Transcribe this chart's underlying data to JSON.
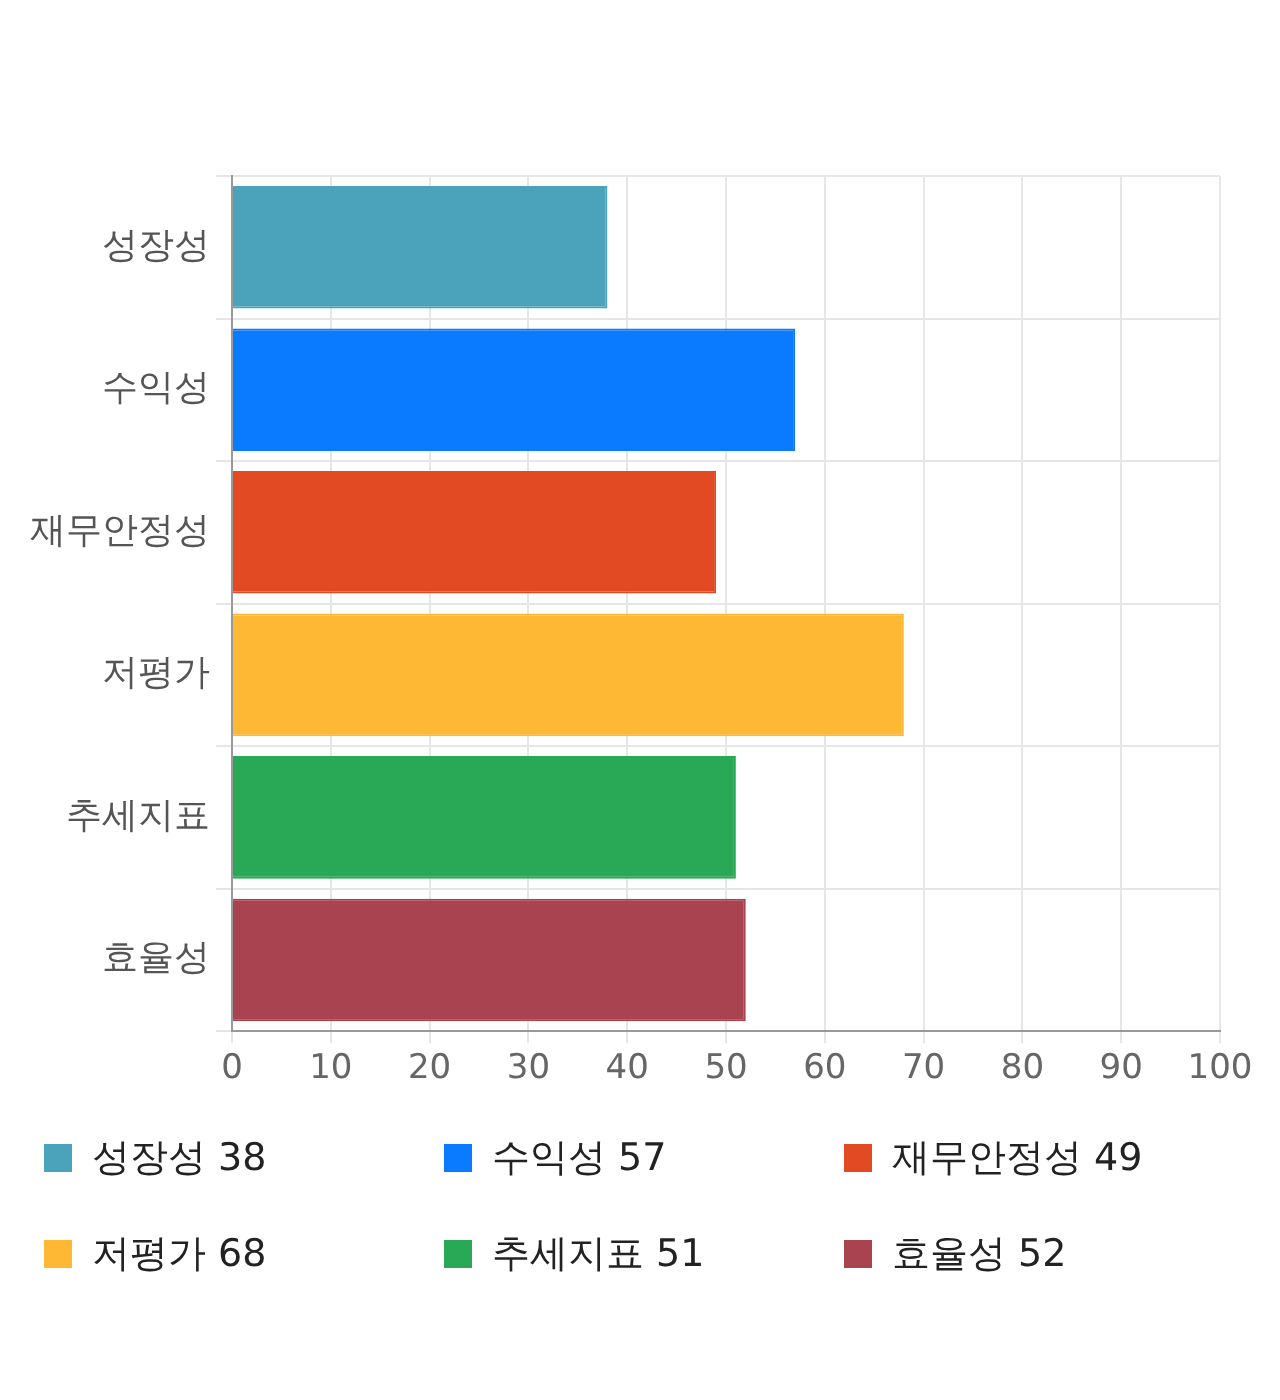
{
  "chart_data": {
    "type": "bar",
    "orientation": "horizontal",
    "categories": [
      "성장성",
      "수익성",
      "재무안정성",
      "저평가",
      "추세지표",
      "효율성"
    ],
    "values": [
      38,
      57,
      49,
      68,
      51,
      52
    ],
    "annotations": [
      "성장성 38",
      "수익성 57",
      "재무안정성 49",
      "저평가 68",
      "추세지표 51",
      "효율성 52"
    ],
    "colors": [
      "#4aa3ba",
      "#0a7bff",
      "#e24a24",
      "#ffb833",
      "#29a855",
      "#a8434f"
    ],
    "xlim": [
      0,
      100
    ],
    "xticks": [
      0,
      10,
      20,
      30,
      40,
      50,
      60,
      70,
      80,
      90,
      100
    ],
    "grid": true
  }
}
